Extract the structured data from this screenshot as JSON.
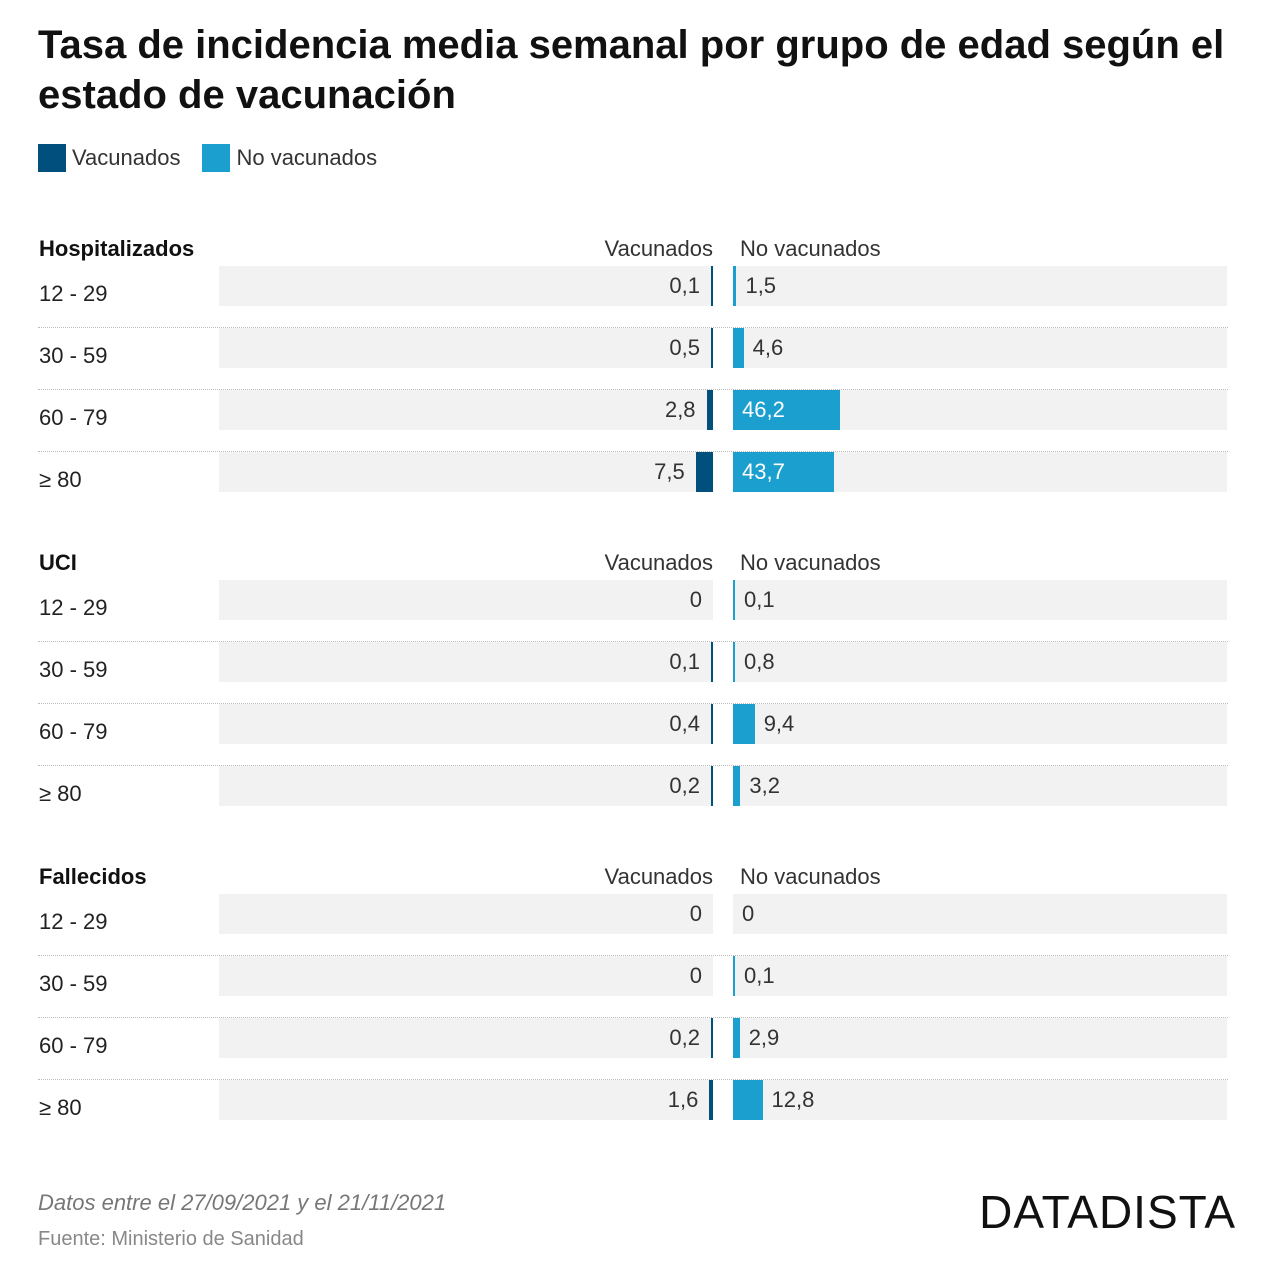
{
  "title": "Tasa de incidencia media semanal por grupo de edad según el estado de vacunación",
  "legend": [
    {
      "label": "Vacunados",
      "color": "#004f7c"
    },
    {
      "label": "No vacunados",
      "color": "#1a9fcf"
    }
  ],
  "footer": {
    "note": "Datos entre el 27/09/2021 y el 21/11/2021",
    "source": "Fuente: Ministerio de Sanidad",
    "brand": "DATADISTA"
  },
  "chart_data": {
    "type": "bar",
    "categories": [
      "12 - 29",
      "30 - 59",
      "60 - 79",
      "≥ 80"
    ],
    "column_labels": {
      "left": "Vacunados",
      "right": "No vacunados"
    },
    "colors": {
      "vacunados": "#004f7c",
      "no_vacunados": "#1a9fcf",
      "track": "#f2f2f2"
    },
    "panels": [
      {
        "title": "Hospitalizados",
        "series": [
          {
            "name": "Vacunados",
            "values": [
              0.1,
              0.5,
              2.8,
              7.5
            ],
            "labels": [
              "0,1",
              "0,5",
              "2,8",
              "7,5"
            ]
          },
          {
            "name": "No vacunados",
            "values": [
              1.5,
              4.6,
              46.2,
              43.7
            ],
            "labels": [
              "1,5",
              "4,6",
              "46,2",
              "43,7"
            ]
          }
        ]
      },
      {
        "title": "UCI",
        "series": [
          {
            "name": "Vacunados",
            "values": [
              0,
              0.1,
              0.4,
              0.2
            ],
            "labels": [
              "0",
              "0,1",
              "0,4",
              "0,2"
            ]
          },
          {
            "name": "No vacunados",
            "values": [
              0.1,
              0.8,
              9.4,
              3.2
            ],
            "labels": [
              "0,1",
              "0,8",
              "9,4",
              "3,2"
            ]
          }
        ]
      },
      {
        "title": "Fallecidos",
        "series": [
          {
            "name": "Vacunados",
            "values": [
              0,
              0,
              0.2,
              1.6
            ],
            "labels": [
              "0",
              "0",
              "0,2",
              "1,6"
            ]
          },
          {
            "name": "No vacunados",
            "values": [
              0,
              0.1,
              2.9,
              12.8
            ],
            "labels": [
              "0",
              "0,1",
              "2,9",
              "12,8"
            ]
          }
        ]
      }
    ]
  }
}
